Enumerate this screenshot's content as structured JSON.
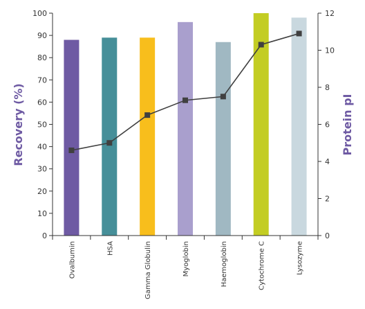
{
  "chart_data": {
    "type": "bar+line",
    "categories": [
      "Ovalbumin",
      "HSA",
      "Gamma Globulin",
      "Myoglobin",
      "Haemoglobin",
      "Cytochrome C",
      "Lysozyme"
    ],
    "bar_series": {
      "axis": "left",
      "values": [
        88,
        89,
        89,
        96,
        87,
        100,
        98
      ],
      "colors": [
        "#6e5aa3",
        "#468f99",
        "#f8be1c",
        "#a99fcd",
        "#a0b8c2",
        "#c3cd23",
        "#c9d8df"
      ]
    },
    "line_series": {
      "axis": "right",
      "values": [
        4.6,
        5.0,
        6.5,
        7.3,
        7.5,
        10.3,
        10.9
      ],
      "color": "#404040",
      "marker": "square"
    },
    "ylabel": "Recovery (%)",
    "ylabel_right": "Protein pI",
    "ylim": [
      0,
      100
    ],
    "ylim_right": [
      0,
      12
    ],
    "yticks": [
      "0",
      "10",
      "20",
      "30",
      "40",
      "50",
      "60",
      "70",
      "80",
      "90",
      "100"
    ],
    "yticks_right": [
      "0",
      "2",
      "4",
      "6",
      "8",
      "10",
      "12"
    ],
    "axis_title_color": "#6e5aa3",
    "grid": false,
    "legend": "none"
  }
}
